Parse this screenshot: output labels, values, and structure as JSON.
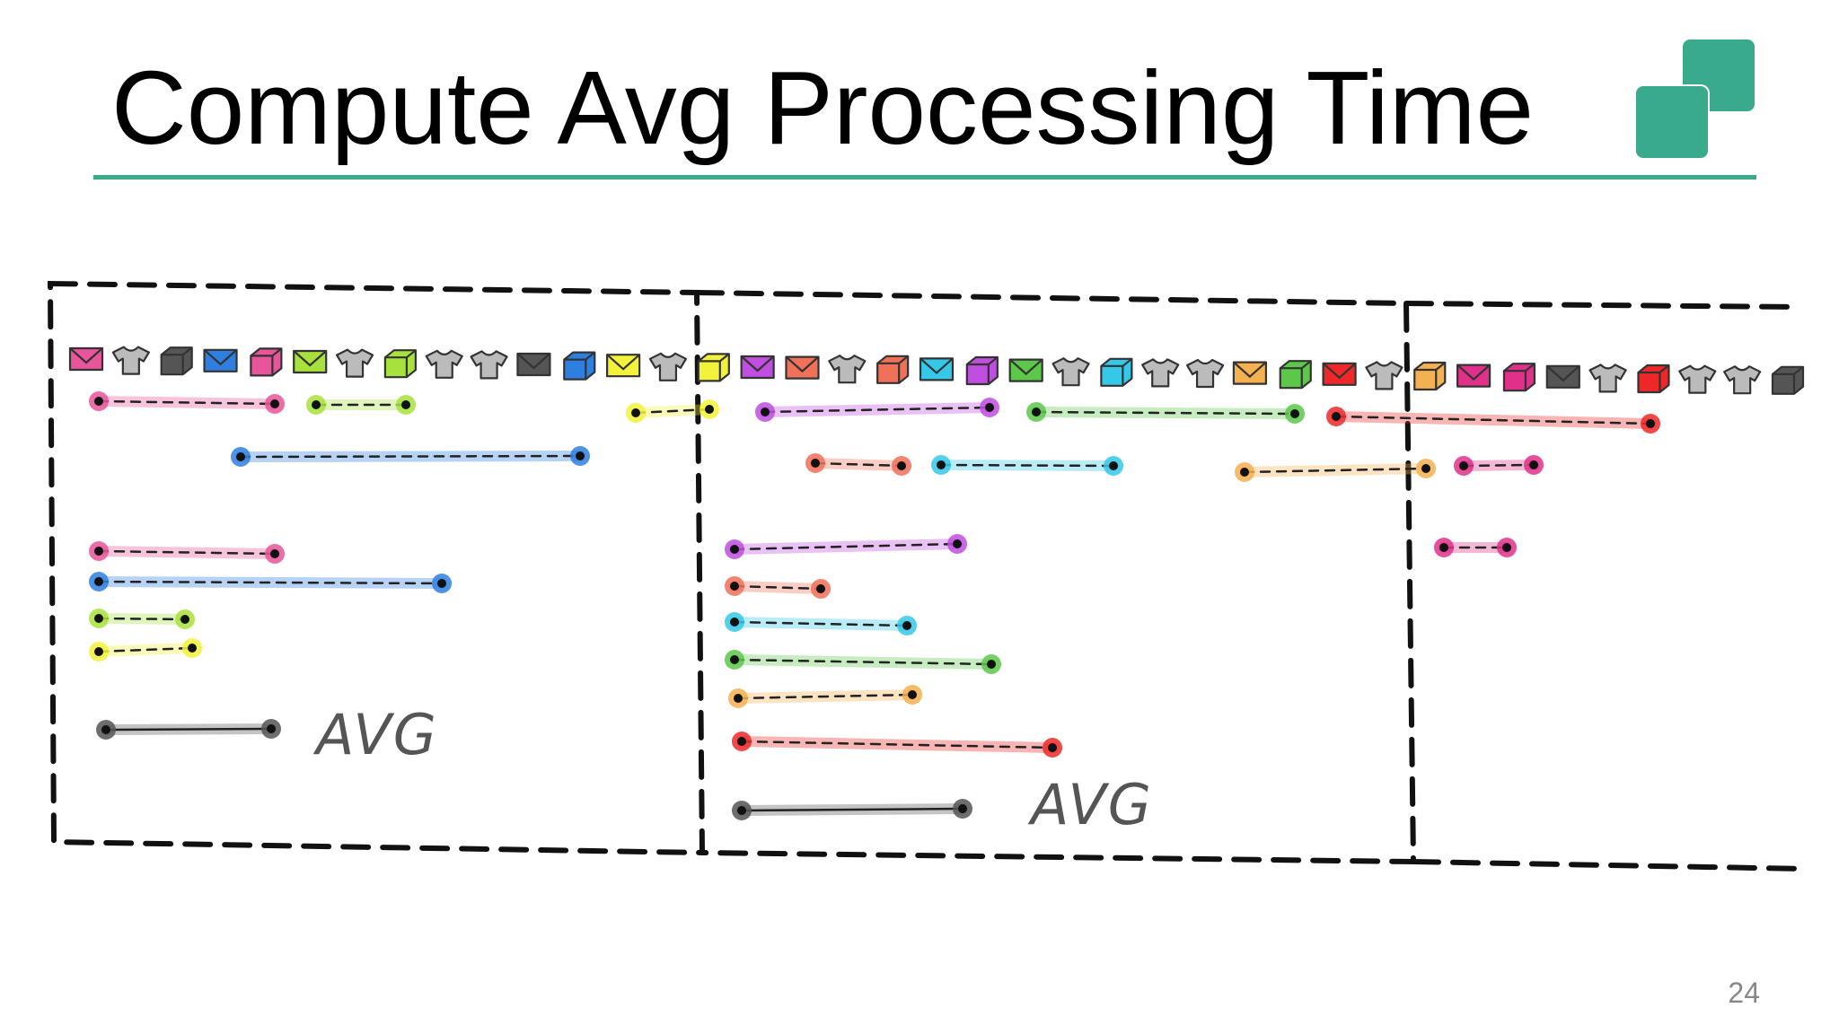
{
  "slide": {
    "title": "Compute Avg Processing Time",
    "page_number": "24",
    "accent_color": "#3aaa8c"
  },
  "diagram": {
    "item_stream": [
      {
        "icon": "envelope-icon",
        "color": "#e8559a"
      },
      {
        "icon": "tshirt-icon",
        "color": "#bbbbbb"
      },
      {
        "icon": "box-icon",
        "color": "#555555"
      },
      {
        "icon": "envelope-icon",
        "color": "#2f7fe0"
      },
      {
        "icon": "box-icon",
        "color": "#e8559a"
      },
      {
        "icon": "envelope-icon",
        "color": "#a7e23c"
      },
      {
        "icon": "tshirt-icon",
        "color": "#bbbbbb"
      },
      {
        "icon": "box-icon",
        "color": "#a7e23c"
      },
      {
        "icon": "tshirt-icon",
        "color": "#bbbbbb"
      },
      {
        "icon": "tshirt-icon",
        "color": "#bbbbbb"
      },
      {
        "icon": "envelope-icon",
        "color": "#555555"
      },
      {
        "icon": "box-icon",
        "color": "#2f7fe0"
      },
      {
        "icon": "envelope-icon",
        "color": "#f2f23a"
      },
      {
        "icon": "tshirt-icon",
        "color": "#bbbbbb"
      },
      {
        "icon": "box-icon",
        "color": "#f2f23a"
      },
      {
        "icon": "envelope-icon",
        "color": "#c04ee0"
      },
      {
        "icon": "envelope-icon",
        "color": "#f07058"
      },
      {
        "icon": "tshirt-icon",
        "color": "#bbbbbb"
      },
      {
        "icon": "box-icon",
        "color": "#f07058"
      },
      {
        "icon": "envelope-icon",
        "color": "#35c8e8"
      },
      {
        "icon": "box-icon",
        "color": "#c04ee0"
      },
      {
        "icon": "envelope-icon",
        "color": "#5cc84a"
      },
      {
        "icon": "tshirt-icon",
        "color": "#bbbbbb"
      },
      {
        "icon": "box-icon",
        "color": "#35c8e8"
      },
      {
        "icon": "tshirt-icon",
        "color": "#bbbbbb"
      },
      {
        "icon": "tshirt-icon",
        "color": "#bbbbbb"
      },
      {
        "icon": "envelope-icon",
        "color": "#f5b050"
      },
      {
        "icon": "box-icon",
        "color": "#5cc84a"
      },
      {
        "icon": "envelope-icon",
        "color": "#ee2828"
      },
      {
        "icon": "tshirt-icon",
        "color": "#bbbbbb"
      },
      {
        "icon": "box-icon",
        "color": "#f5b050"
      },
      {
        "icon": "envelope-icon",
        "color": "#e0308a"
      },
      {
        "icon": "box-icon",
        "color": "#e0308a"
      },
      {
        "icon": "envelope-icon",
        "color": "#555555"
      },
      {
        "icon": "tshirt-icon",
        "color": "#bbbbbb"
      },
      {
        "icon": "box-icon",
        "color": "#ee2828"
      },
      {
        "icon": "tshirt-icon",
        "color": "#bbbbbb"
      },
      {
        "icon": "tshirt-icon",
        "color": "#bbbbbb"
      },
      {
        "icon": "box-icon",
        "color": "#555555"
      }
    ],
    "windows": [
      {
        "avg_label": "AVG",
        "stream_segments": [
          {
            "color": "#e8559a"
          },
          {
            "color": "#a7e23c"
          },
          {
            "color": "#2f7fe0"
          },
          {
            "color": "#f2f23a"
          }
        ],
        "summary_segments": [
          {
            "color": "#e8559a"
          },
          {
            "color": "#2f7fe0"
          },
          {
            "color": "#a7e23c"
          },
          {
            "color": "#f2f23a"
          }
        ],
        "avg_color": "#555555"
      },
      {
        "avg_label": "AVG",
        "stream_segments": [
          {
            "color": "#c04ee0"
          },
          {
            "color": "#5cc84a"
          },
          {
            "color": "#ee2828"
          },
          {
            "color": "#f07058"
          },
          {
            "color": "#35c8e8"
          },
          {
            "color": "#f5b050"
          }
        ],
        "summary_segments": [
          {
            "color": "#c04ee0"
          },
          {
            "color": "#f07058"
          },
          {
            "color": "#35c8e8"
          },
          {
            "color": "#5cc84a"
          },
          {
            "color": "#f5b050"
          },
          {
            "color": "#ee2828"
          }
        ],
        "avg_color": "#555555"
      },
      {
        "avg_label": "",
        "stream_segments": [
          {
            "color": "#e0308a"
          }
        ],
        "summary_segments": [
          {
            "color": "#e0308a"
          }
        ],
        "avg_color": "#555555"
      }
    ]
  }
}
